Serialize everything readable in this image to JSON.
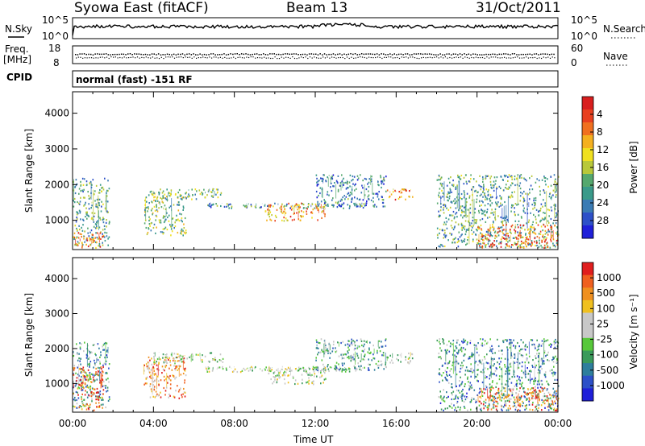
{
  "header": {
    "station": "Syowa East (fitACF)",
    "beam": "Beam 13",
    "date": "31/Oct/2011"
  },
  "status_panel": {
    "nsky_label": "N.Sky",
    "nsearch_label": "N.Search",
    "nsky_ticks": [
      "10^5",
      "10^0"
    ],
    "nsearch_ticks": [
      "10^5",
      "10^0"
    ],
    "freq_label": "Freq.",
    "freq_unit": "[MHz]",
    "freq_ticks": [
      "18",
      "8"
    ],
    "nave_label": "Nave",
    "nave_ticks": [
      "60",
      "0"
    ],
    "cpid_label": "CPID",
    "cpid_text": "normal (fast) -151 RF"
  },
  "x_axis": {
    "label": "Time UT",
    "ticks": [
      "00:00",
      "04:00",
      "08:00",
      "12:00",
      "16:00",
      "20:00",
      "00:00"
    ]
  },
  "chart_data": [
    {
      "type": "heatmap",
      "panel": "power",
      "ylabel": "Slant Range [km]",
      "ylim": [
        180,
        4600
      ],
      "y_ticks": [
        1000,
        2000,
        3000,
        4000
      ],
      "x_hours": [
        0,
        24
      ],
      "colorbar": {
        "label": "Power [dB]",
        "range": [
          0,
          32
        ],
        "ticks": [
          "4",
          "8",
          "12",
          "16",
          "20",
          "24",
          "28"
        ],
        "colors": [
          "#1f1fd8",
          "#2d50c8",
          "#3a7bb4",
          "#3a9a8a",
          "#55a86e",
          "#b8c83a",
          "#f0e020",
          "#f4b020",
          "#f07020",
          "#e84020",
          "#d81e1e"
        ]
      },
      "echo_regions": [
        {
          "t": [
            0.0,
            1.8
          ],
          "range": [
            300,
            2200
          ],
          "level": 0.35
        },
        {
          "t": [
            0.0,
            1.5
          ],
          "range": [
            250,
            700
          ],
          "level": 0.75
        },
        {
          "t": [
            3.5,
            5.6
          ],
          "range": [
            600,
            1800
          ],
          "level": 0.45
        },
        {
          "t": [
            3.8,
            7.5
          ],
          "range": [
            1600,
            1900
          ],
          "level": 0.4
        },
        {
          "t": [
            6.5,
            14.5
          ],
          "range": [
            1350,
            1500
          ],
          "level": 0.3
        },
        {
          "t": [
            9.5,
            12.5
          ],
          "range": [
            1000,
            1500
          ],
          "level": 0.7
        },
        {
          "t": [
            12.0,
            15.5
          ],
          "range": [
            1400,
            2300
          ],
          "level": 0.25
        },
        {
          "t": [
            15.5,
            16.8
          ],
          "range": [
            1600,
            1900
          ],
          "level": 0.7
        },
        {
          "t": [
            18.0,
            24.0
          ],
          "range": [
            250,
            2300
          ],
          "level": 0.35
        },
        {
          "t": [
            20.0,
            24.0
          ],
          "range": [
            250,
            900
          ],
          "level": 0.8
        }
      ]
    },
    {
      "type": "heatmap",
      "panel": "velocity",
      "ylabel": "Slant Range [km]",
      "ylim": [
        180,
        4600
      ],
      "y_ticks": [
        1000,
        2000,
        3000,
        4000
      ],
      "x_hours": [
        0,
        24
      ],
      "colorbar": {
        "label": "Velocity [m s⁻¹]",
        "range": [
          -1250,
          1250
        ],
        "ticks": [
          "1000",
          "500",
          "100",
          "25",
          "-25",
          "-100",
          "-500",
          "-1000"
        ],
        "colors": [
          "#1f1fd8",
          "#2d50c8",
          "#2e7e9c",
          "#3a9a5a",
          "#57c83a",
          "#c8c8c8",
          "#c8c8c8",
          "#f0c020",
          "#f09020",
          "#f06020",
          "#e01e1e"
        ]
      },
      "echo_regions": [
        {
          "t": [
            0.0,
            1.8
          ],
          "range": [
            300,
            2200
          ],
          "level": 0.3
        },
        {
          "t": [
            0.0,
            1.5
          ],
          "range": [
            250,
            1500
          ],
          "level": 0.85
        },
        {
          "t": [
            3.5,
            5.6
          ],
          "range": [
            600,
            1800
          ],
          "level": 0.75
        },
        {
          "t": [
            3.8,
            7.5
          ],
          "range": [
            1600,
            1900
          ],
          "level": 0.5
        },
        {
          "t": [
            6.5,
            14.5
          ],
          "range": [
            1350,
            1500
          ],
          "level": 0.5
        },
        {
          "t": [
            9.5,
            12.5
          ],
          "range": [
            1000,
            1500
          ],
          "level": 0.5
        },
        {
          "t": [
            12.0,
            15.5
          ],
          "range": [
            1400,
            2300
          ],
          "level": 0.35
        },
        {
          "t": [
            15.5,
            16.8
          ],
          "range": [
            1600,
            1900
          ],
          "level": 0.5
        },
        {
          "t": [
            18.0,
            24.0
          ],
          "range": [
            250,
            2300
          ],
          "level": 0.3
        },
        {
          "t": [
            20.0,
            24.0
          ],
          "range": [
            250,
            900
          ],
          "level": 0.8
        }
      ]
    }
  ]
}
